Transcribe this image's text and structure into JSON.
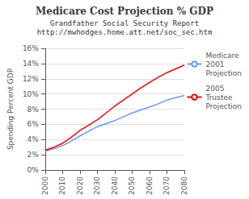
{
  "chart_data": {
    "type": "line",
    "title": "Medicare Cost Projection % GDP",
    "subtitle": [
      "Grandfather Social Security Report",
      "http://mwhodges.home.att.net/soc_sec.htm"
    ],
    "ylabel": "Spending Percent GDP",
    "x": [
      2000,
      2005,
      2010,
      2015,
      2020,
      2025,
      2030,
      2035,
      2040,
      2045,
      2050,
      2055,
      2060,
      2065,
      2070,
      2075,
      2080
    ],
    "series": [
      {
        "name": "Medicare\n2001\nProjection",
        "color": "#6699ff",
        "values": [
          2.5,
          2.8,
          3.2,
          3.8,
          4.5,
          5.1,
          5.7,
          6.1,
          6.5,
          7.0,
          7.5,
          7.9,
          8.3,
          8.7,
          9.2,
          9.5,
          9.8
        ]
      },
      {
        "name": "2005\nTrustee\nProjection",
        "color": "#ff0000",
        "values": [
          2.6,
          3.0,
          3.5,
          4.3,
          5.2,
          5.9,
          6.6,
          7.5,
          8.4,
          9.2,
          10.0,
          10.8,
          11.5,
          12.2,
          12.8,
          13.3,
          13.8
        ]
      }
    ],
    "xlim": [
      2000,
      2080
    ],
    "xticks": [
      2000,
      2010,
      2020,
      2030,
      2040,
      2050,
      2060,
      2070,
      2080
    ],
    "ylim": [
      0,
      16
    ],
    "yticks": [
      {
        "value": 0,
        "label": "0%"
      },
      {
        "value": 2,
        "label": "2%"
      },
      {
        "value": 4,
        "label": "4%"
      },
      {
        "value": 6,
        "label": "6%"
      },
      {
        "value": 8,
        "label": "8%"
      },
      {
        "value": 10,
        "label": "10%"
      },
      {
        "value": 12,
        "label": "12%"
      },
      {
        "value": 14,
        "label": "14%"
      },
      {
        "value": 16,
        "label": "16%"
      }
    ],
    "grid": "y",
    "legend": "right"
  }
}
